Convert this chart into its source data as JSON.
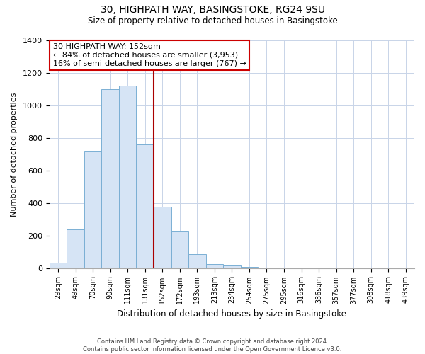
{
  "title1": "30, HIGHPATH WAY, BASINGSTOKE, RG24 9SU",
  "title2": "Size of property relative to detached houses in Basingstoke",
  "xlabel": "Distribution of detached houses by size in Basingstoke",
  "ylabel": "Number of detached properties",
  "bar_labels": [
    "29sqm",
    "49sqm",
    "70sqm",
    "90sqm",
    "111sqm",
    "131sqm",
    "152sqm",
    "172sqm",
    "193sqm",
    "213sqm",
    "234sqm",
    "254sqm",
    "275sqm",
    "295sqm",
    "316sqm",
    "336sqm",
    "357sqm",
    "377sqm",
    "398sqm",
    "418sqm",
    "439sqm"
  ],
  "bar_values": [
    35,
    240,
    720,
    1100,
    1120,
    760,
    380,
    230,
    90,
    30,
    18,
    10,
    5,
    0,
    0,
    0,
    0,
    0,
    0,
    0,
    0
  ],
  "bar_color": "#d6e4f5",
  "bar_edgecolor": "#7bafd4",
  "vline_color": "#aa0000",
  "vline_index": 6,
  "annotation_text": "30 HIGHPATH WAY: 152sqm\n← 84% of detached houses are smaller (3,953)\n16% of semi-detached houses are larger (767) →",
  "annotation_box_edgecolor": "#cc0000",
  "ylim": [
    0,
    1400
  ],
  "yticks": [
    0,
    200,
    400,
    600,
    800,
    1000,
    1200,
    1400
  ],
  "footer1": "Contains HM Land Registry data © Crown copyright and database right 2024.",
  "footer2": "Contains public sector information licensed under the Open Government Licence v3.0.",
  "background_color": "#ffffff",
  "grid_color": "#c8d4e8"
}
